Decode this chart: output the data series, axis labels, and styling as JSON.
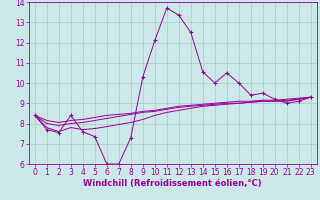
{
  "xlabel": "Windchill (Refroidissement éolien,°C)",
  "bg_color": "#cce8e8",
  "grid_color": "#aacccc",
  "line_color": "#990099",
  "xlim": [
    -0.5,
    23.5
  ],
  "ylim": [
    6,
    14
  ],
  "xticks": [
    0,
    1,
    2,
    3,
    4,
    5,
    6,
    7,
    8,
    9,
    10,
    11,
    12,
    13,
    14,
    15,
    16,
    17,
    18,
    19,
    20,
    21,
    22,
    23
  ],
  "yticks": [
    6,
    7,
    8,
    9,
    10,
    11,
    12,
    13,
    14
  ],
  "series1_x": [
    0,
    1,
    2,
    3,
    4,
    5,
    6,
    7,
    8,
    9,
    10,
    11,
    12,
    13,
    14,
    15,
    16,
    17,
    18,
    19,
    20,
    21,
    22,
    23
  ],
  "series1_y": [
    8.4,
    7.7,
    7.55,
    8.4,
    7.6,
    7.35,
    6.0,
    6.0,
    7.3,
    10.3,
    12.1,
    13.7,
    13.35,
    12.5,
    10.55,
    10.0,
    10.5,
    10.0,
    9.4,
    9.5,
    9.2,
    9.0,
    9.1,
    9.3
  ],
  "series2_x": [
    0,
    1,
    2,
    3,
    4,
    5,
    6,
    7,
    8,
    9,
    10,
    11,
    12,
    13,
    14,
    15,
    16,
    17,
    18,
    19,
    20,
    21,
    22,
    23
  ],
  "series2_y": [
    8.4,
    7.8,
    7.6,
    7.8,
    7.7,
    7.75,
    7.85,
    7.95,
    8.05,
    8.2,
    8.4,
    8.55,
    8.65,
    8.75,
    8.85,
    8.9,
    8.95,
    9.0,
    9.05,
    9.1,
    9.1,
    9.1,
    9.2,
    9.3
  ],
  "series3_x": [
    0,
    1,
    2,
    3,
    4,
    5,
    6,
    7,
    8,
    9,
    10,
    11,
    12,
    13,
    14,
    15,
    16,
    17,
    18,
    19,
    20,
    21,
    22,
    23
  ],
  "series3_y": [
    8.4,
    8.0,
    7.9,
    8.0,
    8.05,
    8.15,
    8.25,
    8.35,
    8.45,
    8.55,
    8.6,
    8.7,
    8.8,
    8.85,
    8.9,
    8.95,
    9.0,
    9.0,
    9.05,
    9.1,
    9.1,
    9.15,
    9.2,
    9.3
  ],
  "series4_x": [
    0,
    1,
    2,
    3,
    4,
    5,
    6,
    7,
    8,
    9,
    10,
    11,
    12,
    13,
    14,
    15,
    16,
    17,
    18,
    19,
    20,
    21,
    22,
    23
  ],
  "series4_y": [
    8.4,
    8.15,
    8.05,
    8.15,
    8.2,
    8.3,
    8.4,
    8.45,
    8.5,
    8.6,
    8.65,
    8.75,
    8.85,
    8.9,
    8.95,
    9.0,
    9.05,
    9.1,
    9.1,
    9.15,
    9.15,
    9.2,
    9.25,
    9.3
  ],
  "tick_fontsize": 5.5,
  "xlabel_fontsize": 6.0
}
